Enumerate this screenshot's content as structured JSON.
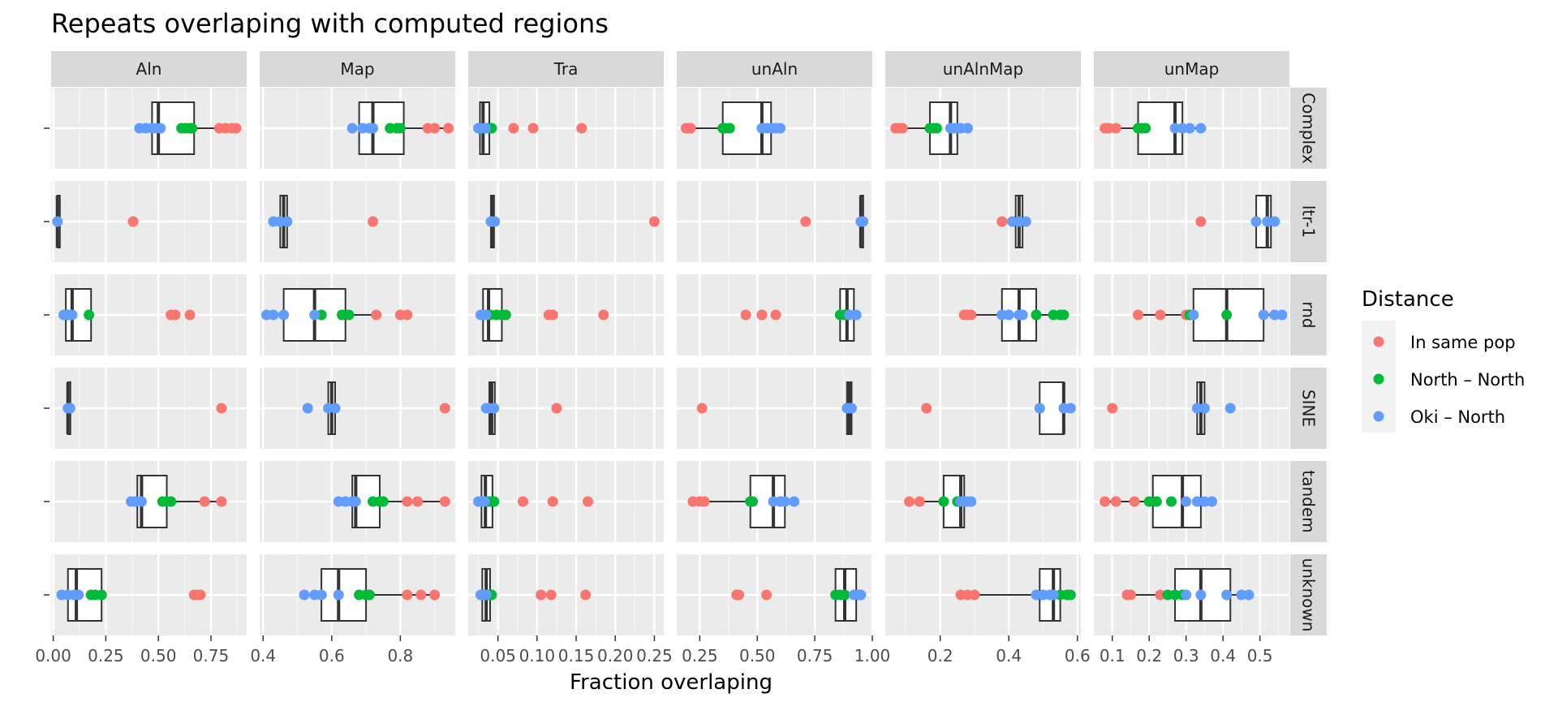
{
  "chart_data": {
    "type": "box-jitter-facet",
    "title": "Repeats overlaping with computed regions",
    "xlabel": "Fraction overlaping",
    "ylabel": "",
    "y_tick_label": "-",
    "columns": [
      "Aln",
      "Map",
      "Tra",
      "unAln",
      "unAlnMap",
      "unMap"
    ],
    "rows": [
      "Complex",
      "ltr-1",
      "rnd",
      "SINE",
      "tandem",
      "unknown"
    ],
    "column_axes": [
      {
        "xlim": [
          -0.01,
          0.92
        ],
        "ticks": [
          0,
          0.25,
          0.5,
          0.75
        ],
        "tick_labels": [
          "0.00",
          "0.25",
          "0.50",
          "0.75"
        ]
      },
      {
        "xlim": [
          0.39,
          0.96
        ],
        "ticks": [
          0.4,
          0.6,
          0.8
        ],
        "tick_labels": [
          "0.4",
          "0.6",
          "0.8"
        ]
      },
      {
        "xlim": [
          0.012,
          0.262
        ],
        "ticks": [
          0.05,
          0.1,
          0.15,
          0.2,
          0.25
        ],
        "tick_labels": [
          "0.05",
          "0.10",
          "0.15",
          "0.20",
          "0.25"
        ]
      },
      {
        "xlim": [
          0.15,
          1.0
        ],
        "ticks": [
          0.25,
          0.5,
          0.75,
          1.0
        ],
        "tick_labels": [
          "0.25",
          "0.50",
          "0.75",
          "1.00"
        ]
      },
      {
        "xlim": [
          0.04,
          0.61
        ],
        "ticks": [
          0.2,
          0.4,
          0.6
        ],
        "tick_labels": [
          "0.2",
          "0.4",
          "0.6"
        ]
      },
      {
        "xlim": [
          0.05,
          0.58
        ],
        "ticks": [
          0.1,
          0.2,
          0.3,
          0.4,
          0.5
        ],
        "tick_labels": [
          "0.1",
          "0.2",
          "0.3",
          "0.4",
          "0.5"
        ]
      }
    ],
    "legend": {
      "title": "Distance",
      "placement": "right",
      "items": [
        {
          "name": "In same pop",
          "color": "#F8766D"
        },
        {
          "name": "North – North",
          "color": "#00BA38"
        },
        {
          "name": "Oki – North",
          "color": "#619CFF"
        }
      ]
    },
    "panels": [
      {
        "col": "Aln",
        "row": "Complex",
        "box": {
          "lo": 0.41,
          "q1": 0.47,
          "med": 0.5,
          "q3": 0.67,
          "hi": 0.87
        },
        "points": {
          "In same pop": [
            0.79,
            0.82,
            0.85,
            0.87
          ],
          "North – North": [
            0.61,
            0.63,
            0.65,
            0.66
          ],
          "Oki – North": [
            0.41,
            0.44,
            0.47,
            0.49,
            0.51
          ]
        }
      },
      {
        "col": "Map",
        "row": "Complex",
        "box": {
          "lo": 0.66,
          "q1": 0.68,
          "med": 0.72,
          "q3": 0.81,
          "hi": 0.94
        },
        "points": {
          "In same pop": [
            0.88,
            0.9,
            0.94
          ],
          "North – North": [
            0.77,
            0.79,
            0.8
          ],
          "Oki – North": [
            0.66,
            0.69,
            0.71,
            0.72
          ]
        }
      },
      {
        "col": "Tra",
        "row": "Complex",
        "box": {
          "lo": 0.025,
          "q1": 0.027,
          "med": 0.031,
          "q3": 0.039,
          "hi": 0.042
        },
        "points": {
          "In same pop": [
            0.07,
            0.095,
            0.157
          ],
          "North – North": [
            0.036,
            0.04,
            0.042
          ],
          "Oki – North": [
            0.025,
            0.028,
            0.031,
            0.034
          ]
        }
      },
      {
        "col": "unAln",
        "row": "Complex",
        "box": {
          "lo": 0.19,
          "q1": 0.35,
          "med": 0.52,
          "q3": 0.56,
          "hi": 0.6
        },
        "points": {
          "In same pop": [
            0.19,
            0.2,
            0.21
          ],
          "North – North": [
            0.35,
            0.36,
            0.38
          ],
          "Oki – North": [
            0.52,
            0.54,
            0.56,
            0.58,
            0.6
          ]
        }
      },
      {
        "col": "unAlnMap",
        "row": "Complex",
        "box": {
          "lo": 0.07,
          "q1": 0.17,
          "med": 0.23,
          "q3": 0.25,
          "hi": 0.28
        },
        "points": {
          "In same pop": [
            0.07,
            0.08,
            0.09
          ],
          "North – North": [
            0.17,
            0.18,
            0.19
          ],
          "Oki – North": [
            0.23,
            0.24,
            0.25,
            0.26,
            0.28
          ]
        }
      },
      {
        "col": "unMap",
        "row": "Complex",
        "box": {
          "lo": 0.08,
          "q1": 0.17,
          "med": 0.27,
          "q3": 0.29,
          "hi": 0.34
        },
        "points": {
          "In same pop": [
            0.08,
            0.09,
            0.11
          ],
          "North – North": [
            0.17,
            0.18,
            0.19
          ],
          "Oki – North": [
            0.27,
            0.29,
            0.31,
            0.34
          ]
        }
      },
      {
        "col": "Aln",
        "row": "ltr-1",
        "box": {
          "lo": 0.02,
          "q1": 0.02,
          "med": 0.02,
          "q3": 0.02,
          "hi": 0.02
        },
        "points": {
          "In same pop": [
            0.38
          ],
          "North – North": [],
          "Oki – North": [
            0.02
          ]
        }
      },
      {
        "col": "Map",
        "row": "ltr-1",
        "box": {
          "lo": 0.43,
          "q1": 0.45,
          "med": 0.46,
          "q3": 0.47,
          "hi": 0.48
        },
        "points": {
          "In same pop": [
            0.72
          ],
          "North – North": [],
          "Oki – North": [
            0.43,
            0.45,
            0.47
          ]
        }
      },
      {
        "col": "Tra",
        "row": "ltr-1",
        "box": {
          "lo": 0.04,
          "q1": 0.041,
          "med": 0.043,
          "q3": 0.045,
          "hi": 0.047
        },
        "points": {
          "In same pop": [
            0.25
          ],
          "North – North": [],
          "Oki – North": [
            0.041,
            0.044,
            0.046
          ]
        }
      },
      {
        "col": "unAln",
        "row": "ltr-1",
        "box": {
          "lo": 0.95,
          "q1": 0.95,
          "med": 0.95,
          "q3": 0.96,
          "hi": 0.96
        },
        "points": {
          "In same pop": [
            0.71
          ],
          "North – North": [],
          "Oki – North": [
            0.95,
            0.96
          ]
        }
      },
      {
        "col": "unAlnMap",
        "row": "ltr-1",
        "box": {
          "lo": 0.41,
          "q1": 0.42,
          "med": 0.43,
          "q3": 0.44,
          "hi": 0.45
        },
        "points": {
          "In same pop": [
            0.38
          ],
          "North – North": [],
          "Oki – North": [
            0.41,
            0.43,
            0.45
          ]
        }
      },
      {
        "col": "unMap",
        "row": "ltr-1",
        "box": {
          "lo": 0.49,
          "q1": 0.49,
          "med": 0.52,
          "q3": 0.53,
          "hi": 0.54
        },
        "points": {
          "In same pop": [
            0.34
          ],
          "North – North": [],
          "Oki – North": [
            0.49,
            0.52,
            0.54
          ]
        }
      },
      {
        "col": "Aln",
        "row": "rnd",
        "box": {
          "lo": 0.05,
          "q1": 0.06,
          "med": 0.09,
          "q3": 0.18,
          "hi": 0.18
        },
        "points": {
          "In same pop": [
            0.56,
            0.58,
            0.65
          ],
          "North – North": [
            0.17
          ],
          "Oki – North": [
            0.05,
            0.07,
            0.09
          ]
        }
      },
      {
        "col": "Map",
        "row": "rnd",
        "box": {
          "lo": 0.41,
          "q1": 0.46,
          "med": 0.55,
          "q3": 0.64,
          "hi": 0.73
        },
        "points": {
          "In same pop": [
            0.73,
            0.8,
            0.82
          ],
          "North – North": [
            0.57,
            0.63,
            0.65
          ],
          "Oki – North": [
            0.41,
            0.43,
            0.46,
            0.55
          ]
        }
      },
      {
        "col": "Tra",
        "row": "rnd",
        "box": {
          "lo": 0.028,
          "q1": 0.031,
          "med": 0.038,
          "q3": 0.055,
          "hi": 0.06
        },
        "points": {
          "In same pop": [
            0.115,
            0.12,
            0.185
          ],
          "North – North": [
            0.04,
            0.048,
            0.055,
            0.06
          ],
          "Oki – North": [
            0.028,
            0.031,
            0.035
          ]
        }
      },
      {
        "col": "unAln",
        "row": "rnd",
        "box": {
          "lo": 0.86,
          "q1": 0.86,
          "med": 0.89,
          "q3": 0.92,
          "hi": 0.93
        },
        "points": {
          "In same pop": [
            0.45,
            0.52,
            0.58
          ],
          "North – North": [
            0.86,
            0.88,
            0.89
          ],
          "Oki – North": [
            0.9,
            0.93
          ]
        }
      },
      {
        "col": "unAlnMap",
        "row": "rnd",
        "box": {
          "lo": 0.27,
          "q1": 0.38,
          "med": 0.43,
          "q3": 0.48,
          "hi": 0.56
        },
        "points": {
          "In same pop": [
            0.27,
            0.28,
            0.29
          ],
          "North – North": [
            0.48,
            0.53,
            0.55,
            0.56
          ],
          "Oki – North": [
            0.38,
            0.4,
            0.43,
            0.44
          ]
        }
      },
      {
        "col": "unMap",
        "row": "rnd",
        "box": {
          "lo": 0.17,
          "q1": 0.32,
          "med": 0.41,
          "q3": 0.51,
          "hi": 0.56
        },
        "points": {
          "In same pop": [
            0.17,
            0.23,
            0.3
          ],
          "North – North": [
            0.31,
            0.41
          ],
          "Oki – North": [
            0.32,
            0.51,
            0.54,
            0.56
          ]
        }
      },
      {
        "col": "Aln",
        "row": "SINE",
        "box": {
          "lo": 0.07,
          "q1": 0.07,
          "med": 0.07,
          "q3": 0.08,
          "hi": 0.08
        },
        "points": {
          "In same pop": [
            0.8
          ],
          "North – North": [],
          "Oki – North": [
            0.07,
            0.08
          ]
        }
      },
      {
        "col": "Map",
        "row": "SINE",
        "box": {
          "lo": 0.58,
          "q1": 0.59,
          "med": 0.6,
          "q3": 0.61,
          "hi": 0.62
        },
        "points": {
          "In same pop": [
            0.93
          ],
          "North – North": [],
          "Oki – North": [
            0.53,
            0.59,
            0.61
          ]
        }
      },
      {
        "col": "Tra",
        "row": "SINE",
        "box": {
          "lo": 0.038,
          "q1": 0.039,
          "med": 0.042,
          "q3": 0.046,
          "hi": 0.047
        },
        "points": {
          "In same pop": [
            0.125
          ],
          "North – North": [],
          "Oki – North": [
            0.035,
            0.039,
            0.045
          ]
        }
      },
      {
        "col": "unAln",
        "row": "SINE",
        "box": {
          "lo": 0.89,
          "q1": 0.89,
          "med": 0.9,
          "q3": 0.91,
          "hi": 0.92
        },
        "points": {
          "In same pop": [
            0.26
          ],
          "North – North": [],
          "Oki – North": [
            0.89,
            0.9,
            0.91
          ]
        }
      },
      {
        "col": "unAlnMap",
        "row": "SINE",
        "box": {
          "lo": 0.49,
          "q1": 0.49,
          "med": 0.56,
          "q3": 0.56,
          "hi": 0.58
        },
        "points": {
          "In same pop": [
            0.16
          ],
          "North – North": [],
          "Oki – North": [
            0.49,
            0.56,
            0.58
          ]
        }
      },
      {
        "col": "unMap",
        "row": "SINE",
        "box": {
          "lo": 0.33,
          "q1": 0.33,
          "med": 0.34,
          "q3": 0.35,
          "hi": 0.35
        },
        "points": {
          "In same pop": [
            0.1
          ],
          "North – North": [],
          "Oki – North": [
            0.33,
            0.35,
            0.42
          ]
        }
      },
      {
        "col": "Aln",
        "row": "tandem",
        "box": {
          "lo": 0.37,
          "q1": 0.4,
          "med": 0.42,
          "q3": 0.54,
          "hi": 0.8
        },
        "points": {
          "In same pop": [
            0.72,
            0.8
          ],
          "North – North": [
            0.52,
            0.54,
            0.56
          ],
          "Oki – North": [
            0.37,
            0.39,
            0.42
          ]
        }
      },
      {
        "col": "Map",
        "row": "tandem",
        "box": {
          "lo": 0.62,
          "q1": 0.66,
          "med": 0.67,
          "q3": 0.74,
          "hi": 0.93
        },
        "points": {
          "In same pop": [
            0.82,
            0.85,
            0.93
          ],
          "North – North": [
            0.72,
            0.74,
            0.75
          ],
          "Oki – North": [
            0.62,
            0.64,
            0.66,
            0.67
          ]
        }
      },
      {
        "col": "Tra",
        "row": "tandem",
        "box": {
          "lo": 0.025,
          "q1": 0.029,
          "med": 0.034,
          "q3": 0.043,
          "hi": 0.045
        },
        "points": {
          "In same pop": [
            0.082,
            0.12,
            0.165
          ],
          "North – North": [
            0.036,
            0.04,
            0.045
          ],
          "Oki – North": [
            0.025,
            0.029,
            0.033
          ]
        }
      },
      {
        "col": "unAln",
        "row": "tandem",
        "box": {
          "lo": 0.22,
          "q1": 0.47,
          "med": 0.57,
          "q3": 0.62,
          "hi": 0.66
        },
        "points": {
          "In same pop": [
            0.22,
            0.25,
            0.27
          ],
          "North – North": [
            0.47,
            0.48
          ],
          "Oki – North": [
            0.57,
            0.6,
            0.62,
            0.66
          ]
        }
      },
      {
        "col": "unAlnMap",
        "row": "tandem",
        "box": {
          "lo": 0.11,
          "q1": 0.21,
          "med": 0.26,
          "q3": 0.27,
          "hi": 0.29
        },
        "points": {
          "In same pop": [
            0.11,
            0.14
          ],
          "North – North": [
            0.21,
            0.25
          ],
          "Oki – North": [
            0.26,
            0.27,
            0.28,
            0.29
          ]
        }
      },
      {
        "col": "unMap",
        "row": "tandem",
        "box": {
          "lo": 0.08,
          "q1": 0.21,
          "med": 0.29,
          "q3": 0.34,
          "hi": 0.37
        },
        "points": {
          "In same pop": [
            0.08,
            0.11,
            0.16
          ],
          "North – North": [
            0.2,
            0.22,
            0.26
          ],
          "Oki – North": [
            0.3,
            0.33,
            0.35,
            0.37
          ]
        }
      },
      {
        "col": "Aln",
        "row": "unknown",
        "box": {
          "lo": 0.04,
          "q1": 0.07,
          "med": 0.11,
          "q3": 0.23,
          "hi": 0.23
        },
        "points": {
          "In same pop": [
            0.67,
            0.69,
            0.7
          ],
          "North – North": [
            0.18,
            0.2,
            0.23
          ],
          "Oki – North": [
            0.04,
            0.07,
            0.1,
            0.12
          ]
        }
      },
      {
        "col": "Map",
        "row": "unknown",
        "box": {
          "lo": 0.52,
          "q1": 0.57,
          "med": 0.62,
          "q3": 0.7,
          "hi": 0.9
        },
        "points": {
          "In same pop": [
            0.82,
            0.86,
            0.9
          ],
          "North – North": [
            0.68,
            0.7,
            0.71
          ],
          "Oki – North": [
            0.52,
            0.55,
            0.57,
            0.62
          ]
        }
      },
      {
        "col": "Tra",
        "row": "unknown",
        "box": {
          "lo": 0.028,
          "q1": 0.03,
          "med": 0.035,
          "q3": 0.04,
          "hi": 0.042
        },
        "points": {
          "In same pop": [
            0.105,
            0.118,
            0.162
          ],
          "North – North": [
            0.038,
            0.04,
            0.042
          ],
          "Oki – North": [
            0.028,
            0.031,
            0.035
          ]
        }
      },
      {
        "col": "unAln",
        "row": "unknown",
        "box": {
          "lo": 0.84,
          "q1": 0.84,
          "med": 0.88,
          "q3": 0.93,
          "hi": 0.95
        },
        "points": {
          "In same pop": [
            0.41,
            0.42,
            0.54
          ],
          "North – North": [
            0.84,
            0.86,
            0.88
          ],
          "Oki – North": [
            0.92,
            0.94,
            0.95
          ]
        }
      },
      {
        "col": "unAlnMap",
        "row": "unknown",
        "box": {
          "lo": 0.26,
          "q1": 0.49,
          "med": 0.53,
          "q3": 0.55,
          "hi": 0.58
        },
        "points": {
          "In same pop": [
            0.26,
            0.28,
            0.3
          ],
          "North – North": [
            0.55,
            0.57,
            0.58
          ],
          "Oki – North": [
            0.48,
            0.5,
            0.52,
            0.53
          ]
        }
      },
      {
        "col": "unMap",
        "row": "unknown",
        "box": {
          "lo": 0.14,
          "q1": 0.27,
          "med": 0.34,
          "q3": 0.42,
          "hi": 0.47
        },
        "points": {
          "In same pop": [
            0.14,
            0.15,
            0.23
          ],
          "North – North": [
            0.25,
            0.27,
            0.29
          ],
          "Oki – North": [
            0.3,
            0.34,
            0.41,
            0.45,
            0.47
          ]
        }
      }
    ]
  }
}
